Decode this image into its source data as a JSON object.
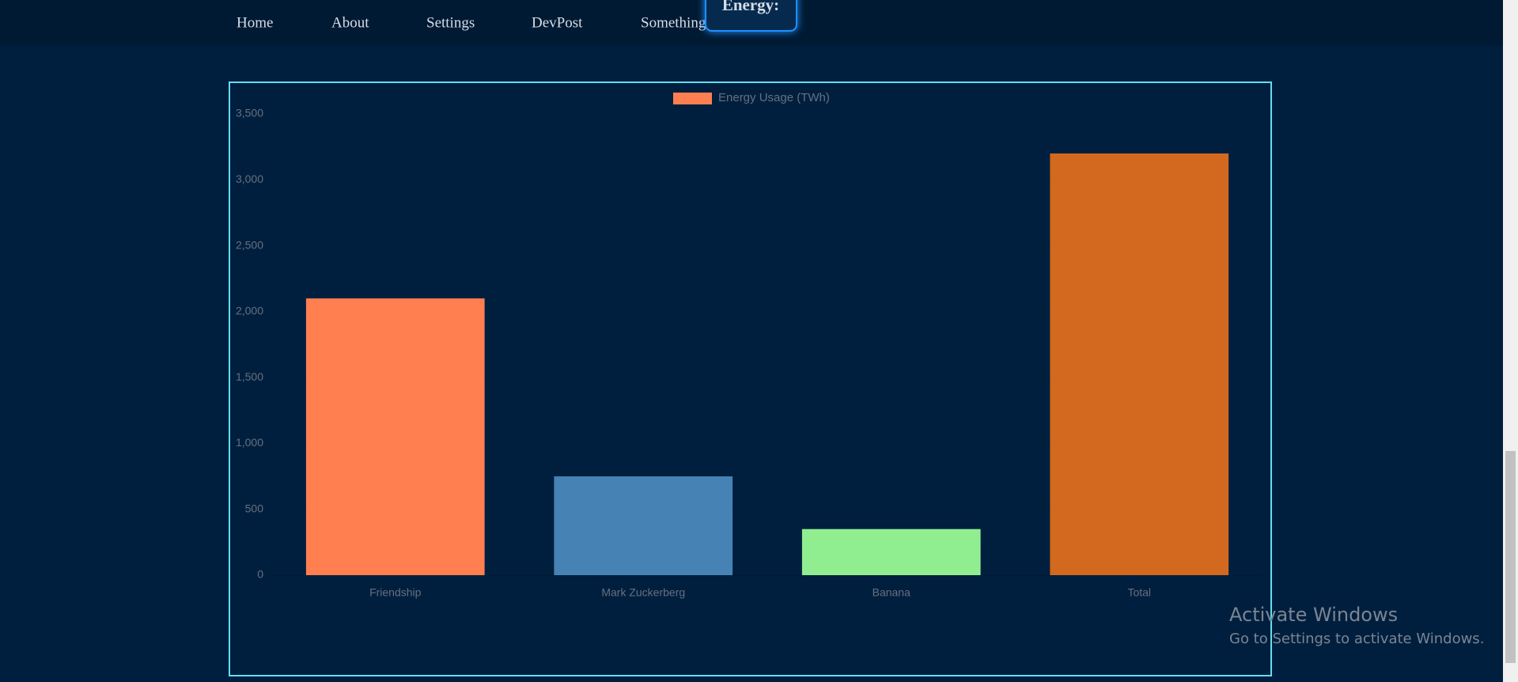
{
  "nav": {
    "items": [
      "Home",
      "About",
      "Settings",
      "DevPost",
      "Something"
    ],
    "badge": "Energy:"
  },
  "chart_data": {
    "type": "bar",
    "categories": [
      "Friendship",
      "Mark Zuckerberg",
      "Banana",
      "Total"
    ],
    "series": [
      {
        "name": "Energy Usage (TWh)",
        "color": "#ff7f50",
        "colors": [
          "#ff7f50",
          "#4682b4",
          "#90ee90",
          "#d2691e"
        ],
        "values": [
          2100,
          750,
          350,
          3200
        ]
      }
    ],
    "ylim": [
      0,
      3500
    ],
    "yticks": [
      0,
      500,
      {
        "value": 1000,
        "label": "1,000"
      },
      {
        "value": 1500,
        "label": "1,500"
      },
      {
        "value": 2000,
        "label": "2,000"
      },
      {
        "value": 2500,
        "label": "2,500"
      },
      {
        "value": 3000,
        "label": "3,000"
      },
      {
        "value": 3500,
        "label": "3,500"
      }
    ],
    "grid": true,
    "legend": "top"
  },
  "watermark": {
    "title": "Activate Windows",
    "subtitle": "Go to Settings to activate Windows."
  }
}
